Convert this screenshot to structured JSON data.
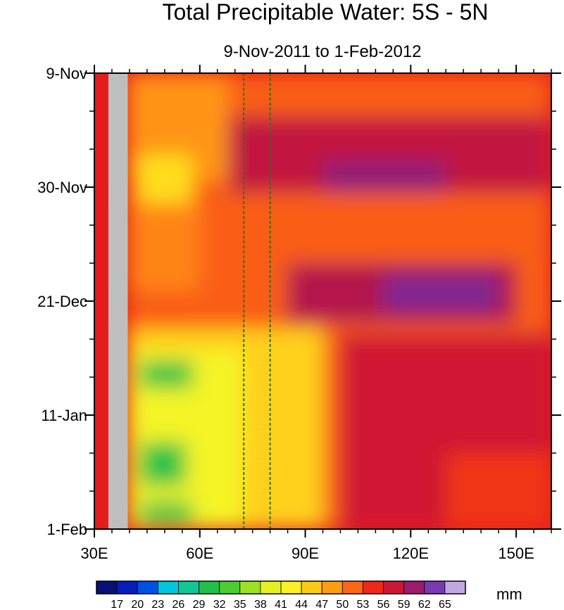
{
  "chart_data": {
    "type": "heatmap",
    "title": "Total Precipitable Water: 5S - 5N",
    "subtitle": "9-Nov-2011 to 1-Feb-2012",
    "xlabel": "",
    "ylabel": "",
    "xlim": [
      30,
      160
    ],
    "x_ticks": [
      {
        "value": 30,
        "label": "30E"
      },
      {
        "value": 60,
        "label": "60E"
      },
      {
        "value": 90,
        "label": "90E"
      },
      {
        "value": 120,
        "label": "120E"
      },
      {
        "value": 150,
        "label": "150E"
      }
    ],
    "ylim_days": [
      0,
      84
    ],
    "y_ticks": [
      {
        "value": 0,
        "label": "9-Nov"
      },
      {
        "value": 21,
        "label": "30-Nov"
      },
      {
        "value": 42,
        "label": "21-Dec"
      },
      {
        "value": 63,
        "label": "11-Jan"
      },
      {
        "value": 84,
        "label": "1-Feb"
      }
    ],
    "colorbar": {
      "unit": "mm",
      "levels": [
        17,
        20,
        23,
        26,
        29,
        32,
        35,
        38,
        41,
        44,
        47,
        50,
        53,
        56,
        59,
        62,
        65
      ]
    },
    "missing_region_lon": [
      34,
      39.5
    ],
    "reference_lines_lon": [
      72.5,
      80
    ],
    "regions_mm": [
      {
        "lon": [
          39.5,
          160
        ],
        "day": [
          0,
          84
        ],
        "value": 52
      },
      {
        "lon": [
          39.5,
          68
        ],
        "day": [
          0,
          20
        ],
        "value": 49
      },
      {
        "lon": [
          42,
          58
        ],
        "day": [
          15,
          24
        ],
        "value": 44
      },
      {
        "lon": [
          39.5,
          60
        ],
        "day": [
          24,
          40
        ],
        "value": 50
      },
      {
        "lon": [
          39.5,
          95
        ],
        "day": [
          47,
          84
        ],
        "value": 45
      },
      {
        "lon": [
          40,
          72
        ],
        "day": [
          51,
          84
        ],
        "value": 41
      },
      {
        "lon": [
          43,
          58
        ],
        "day": [
          53,
          58
        ],
        "value": 31
      },
      {
        "lon": [
          43,
          56
        ],
        "day": [
          68,
          76
        ],
        "value": 31
      },
      {
        "lon": [
          43,
          58
        ],
        "day": [
          79,
          83
        ],
        "value": 31
      },
      {
        "lon": [
          68,
          160
        ],
        "day": [
          8,
          22
        ],
        "value": 58
      },
      {
        "lon": [
          95,
          130
        ],
        "day": [
          16,
          22
        ],
        "value": 61
      },
      {
        "lon": [
          85,
          150
        ],
        "day": [
          35,
          46
        ],
        "value": 59
      },
      {
        "lon": [
          112,
          145
        ],
        "day": [
          37,
          44
        ],
        "value": 62
      },
      {
        "lon": [
          100,
          160
        ],
        "day": [
          48,
          84
        ],
        "value": 57
      },
      {
        "lon": [
          130,
          160
        ],
        "day": [
          70,
          84
        ],
        "value": 54
      }
    ]
  }
}
